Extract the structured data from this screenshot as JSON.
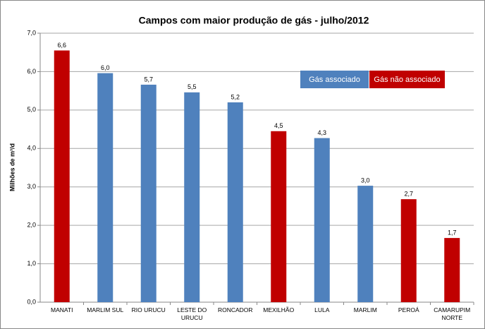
{
  "chart_data": {
    "type": "bar",
    "title": "Campos com maior produção de gás - julho/2012",
    "y_label": "Milhões de m³/d",
    "categories": [
      "MANATI",
      "MARLIM SUL",
      "RIO URUCU",
      "LESTE DO\nURUCU",
      "RONCADOR",
      "MEXILHÃO",
      "LULA",
      "MARLIM",
      "PEROÁ",
      "CAMARUPIM\nNORTE"
    ],
    "series": [
      {
        "name": "Gás associado",
        "color": "#4f81bd",
        "values": [
          null,
          5.96,
          5.66,
          5.46,
          5.2,
          null,
          4.27,
          3.03,
          null,
          null
        ],
        "value_labels": [
          null,
          "6,0",
          "5,7",
          "5,5",
          "5,2",
          null,
          "4,3",
          "3,0",
          null,
          null
        ]
      },
      {
        "name": "Gás não associado",
        "color": "#c00000",
        "values": [
          6.55,
          null,
          null,
          null,
          null,
          4.45,
          null,
          null,
          2.68,
          1.67
        ],
        "value_labels": [
          "6,6",
          null,
          null,
          null,
          null,
          "4,5",
          null,
          null,
          "2,7",
          "1,7"
        ]
      }
    ],
    "ylim": [
      0,
      7
    ],
    "yticks": [
      {
        "value": 0,
        "label": "0,0"
      },
      {
        "value": 1,
        "label": "1,0"
      },
      {
        "value": 2,
        "label": "2,0"
      },
      {
        "value": 3,
        "label": "3,0"
      },
      {
        "value": 4,
        "label": "4,0"
      },
      {
        "value": 5,
        "label": "5,0"
      },
      {
        "value": 6,
        "label": "6,0"
      },
      {
        "value": 7,
        "label": "7,0"
      }
    ],
    "grid": true
  }
}
